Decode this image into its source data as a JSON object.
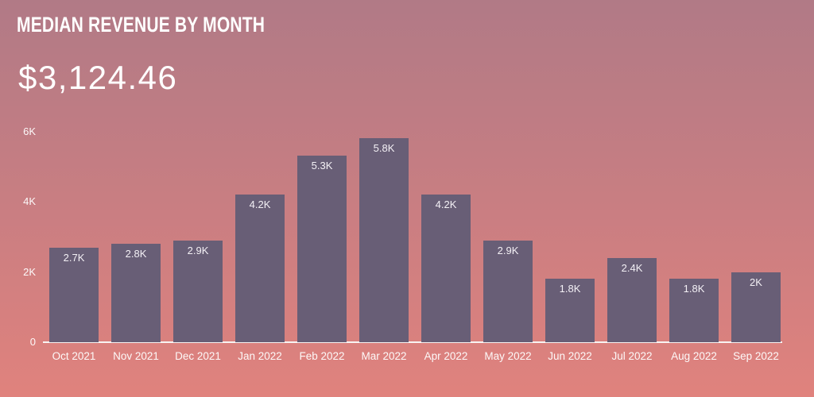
{
  "header": {
    "title": "MEDIAN REVENUE BY MONTH",
    "kpi_value": "$3,124.46"
  },
  "chart_data": {
    "type": "bar",
    "title": "Median Revenue by Month",
    "categories": [
      "Oct 2021",
      "Nov 2021",
      "Dec 2021",
      "Jan 2022",
      "Feb 2022",
      "Mar 2022",
      "Apr 2022",
      "May 2022",
      "Jun 2022",
      "Jul 2022",
      "Aug 2022",
      "Sep 2022"
    ],
    "values": [
      2700,
      2800,
      2900,
      4200,
      5300,
      5800,
      4200,
      2900,
      1800,
      2400,
      1800,
      2000
    ],
    "bar_labels": [
      "2.7K",
      "2.8K",
      "2.9K",
      "4.2K",
      "5.3K",
      "5.8K",
      "4.2K",
      "2.9K",
      "1.8K",
      "2.4K",
      "1.8K",
      "2K"
    ],
    "y_ticks": [
      {
        "label": "0",
        "value": 0
      },
      {
        "label": "2K",
        "value": 2000
      },
      {
        "label": "4K",
        "value": 4000
      },
      {
        "label": "6K",
        "value": 6000
      }
    ],
    "ylim": [
      0,
      6000
    ],
    "xlabel": "",
    "ylabel": "",
    "grid": false,
    "legend": false
  },
  "colors": {
    "background_top": "#b17a86",
    "background_mid": "#c97e82",
    "background_bottom": "#e0827d",
    "bar": "#685e76",
    "axis_line": "#f8f4f3",
    "text": "#ffffff"
  }
}
